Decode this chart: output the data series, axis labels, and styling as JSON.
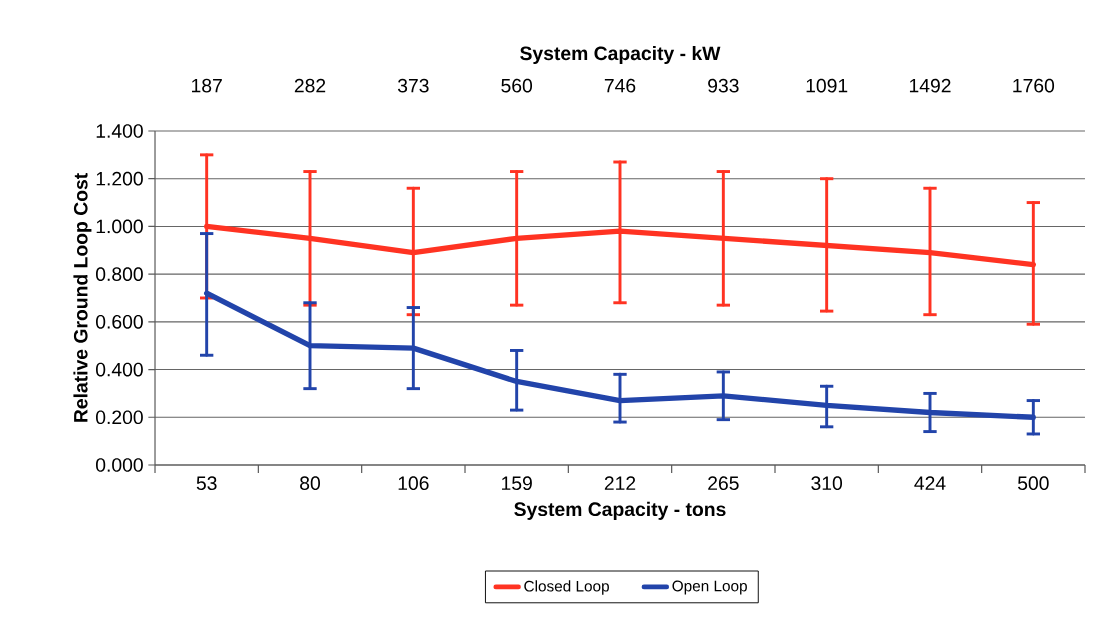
{
  "chart_data": {
    "type": "line",
    "xlabel": "System Capacity - tons",
    "ylabel": "Relative Ground Loop Cost",
    "x2label": "System Capacity - kW",
    "categories": [
      "53",
      "80",
      "106",
      "159",
      "212",
      "265",
      "310",
      "424",
      "500"
    ],
    "annotations": [
      "187",
      "282",
      "373",
      "560",
      "746",
      "933",
      "1091",
      "1492",
      "1760"
    ],
    "ylim": [
      0,
      1.4
    ],
    "yticks": [
      {
        "value": 0,
        "label": "0.000"
      },
      {
        "value": 0.2,
        "label": "0.200"
      },
      {
        "value": 0.4,
        "label": "0.400"
      },
      {
        "value": 0.6,
        "label": "0.600"
      },
      {
        "value": 0.8,
        "label": "0.800"
      },
      {
        "value": 1.0,
        "label": "1.000"
      },
      {
        "value": 1.2,
        "label": "1.200"
      },
      {
        "value": 1.4,
        "label": "1.400"
      }
    ],
    "series": [
      {
        "name": "Closed Loop",
        "color": "#ff3322",
        "values": [
          1.0,
          0.95,
          0.89,
          0.95,
          0.98,
          0.95,
          0.92,
          0.89,
          0.84
        ],
        "errors": [
          [
            0.7,
            1.3
          ],
          [
            0.67,
            1.23
          ],
          [
            0.63,
            1.16
          ],
          [
            0.67,
            1.23
          ],
          [
            0.68,
            1.27
          ],
          [
            0.67,
            1.23
          ],
          [
            0.645,
            1.2
          ],
          [
            0.63,
            1.16
          ],
          [
            0.59,
            1.1
          ]
        ]
      },
      {
        "name": "Open Loop",
        "color": "#2244aa",
        "values": [
          0.72,
          0.5,
          0.49,
          0.35,
          0.27,
          0.29,
          0.25,
          0.22,
          0.2
        ],
        "errors": [
          [
            0.46,
            0.97
          ],
          [
            0.32,
            0.68
          ],
          [
            0.32,
            0.66
          ],
          [
            0.23,
            0.48
          ],
          [
            0.18,
            0.38
          ],
          [
            0.19,
            0.39
          ],
          [
            0.16,
            0.33
          ],
          [
            0.14,
            0.3
          ],
          [
            0.13,
            0.27
          ]
        ]
      }
    ],
    "grid": "y",
    "legend": "bottom",
    "line_style": "solid"
  }
}
